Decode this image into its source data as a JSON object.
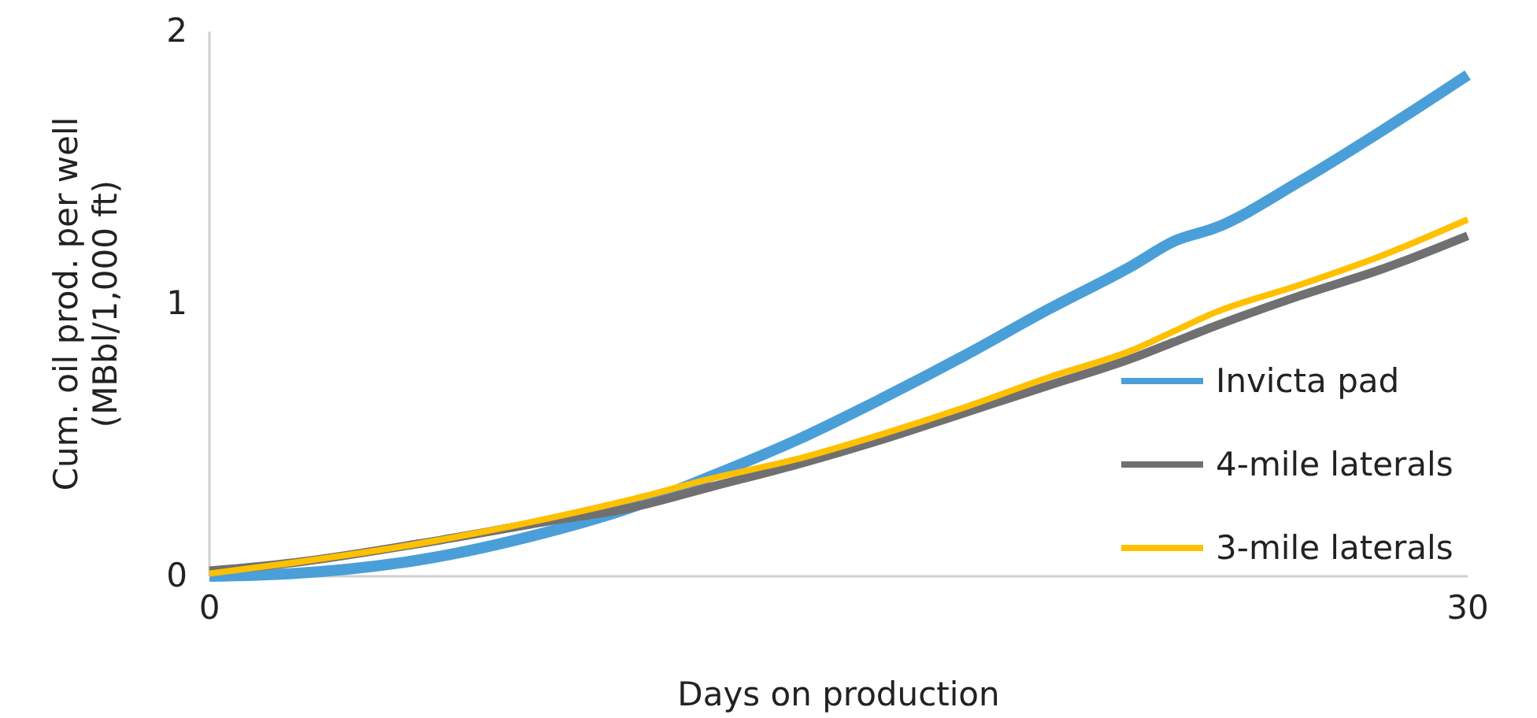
{
  "chart_data": {
    "type": "line",
    "xlabel": "Days on production",
    "ylabel": "Cum. oil prod. per well (MBbl/1,000 ft)",
    "x": [
      0,
      2,
      5,
      8,
      10,
      12,
      14,
      16,
      18,
      20,
      22,
      23,
      24,
      26,
      28,
      30
    ],
    "xlim": [
      0,
      30
    ],
    "xticks": [
      0,
      30
    ],
    "ylim": [
      0,
      2
    ],
    "yticks": [
      0,
      1,
      2
    ],
    "legend": "bottom right",
    "grid": false,
    "series": [
      {
        "name": "Invicta pad",
        "color": "#4a9fd8",
        "values": [
          0,
          0.01,
          0.06,
          0.16,
          0.25,
          0.37,
          0.5,
          0.65,
          0.81,
          0.98,
          1.14,
          1.23,
          1.28,
          1.45,
          1.64,
          1.84
        ]
      },
      {
        "name": "4-mile laterals",
        "color": "#707072",
        "values": [
          0.02,
          0.05,
          0.12,
          0.2,
          0.25,
          0.33,
          0.41,
          0.5,
          0.6,
          0.7,
          0.8,
          0.86,
          0.92,
          1.03,
          1.13,
          1.25
        ]
      },
      {
        "name": "3-mile laterals",
        "color": "#ffc000",
        "values": [
          0.01,
          0.05,
          0.12,
          0.21,
          0.28,
          0.36,
          0.43,
          0.52,
          0.62,
          0.73,
          0.83,
          0.9,
          0.97,
          1.07,
          1.18,
          1.31
        ]
      }
    ]
  }
}
